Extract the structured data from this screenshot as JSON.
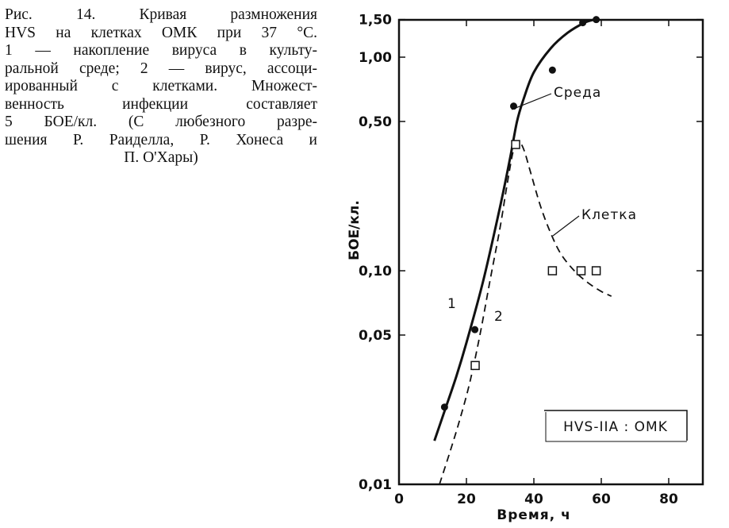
{
  "caption": {
    "lines": [
      "Рис.   14. Кривая размножения",
      "HVS на клетках ОМК при 37 °С.",
      "1 — накопление вируса в культу-",
      "ральной среде; 2 — вирус, ассоци-",
      "ированный с клетками. Множест-",
      "венность  инфекции  составляет",
      "5 БОЕ/кл. (С любезного разре-",
      "шения Р. Раиделла, Р. Хонеса и",
      "П. О'Хары)"
    ]
  },
  "chart_data": {
    "type": "line",
    "title": "",
    "xlabel": "Время, ч",
    "ylabel": "БОЕ/кл.",
    "xlim": [
      0,
      90
    ],
    "ylim": [
      0.01,
      1.5
    ],
    "yscale": "log",
    "x_ticks": [
      0,
      20,
      40,
      60,
      80
    ],
    "x_tick_labels": [
      "0",
      "20",
      "40",
      "60",
      "80"
    ],
    "y_ticks": [
      0.01,
      0.05,
      0.1,
      0.5,
      1.0,
      1.5
    ],
    "y_tick_labels": [
      "0,01",
      "0,05",
      "0,10",
      "0,50",
      "1,00",
      "1,50"
    ],
    "series": [
      {
        "name": "Среда",
        "number_label": "1",
        "style": "solid",
        "marker": "filled-circle",
        "points": [
          [
            13.5,
            0.023
          ],
          [
            22.5,
            0.053
          ],
          [
            34,
            0.59
          ],
          [
            45.5,
            0.87
          ],
          [
            54.5,
            1.45
          ],
          [
            58.5,
            1.5
          ]
        ],
        "curve": [
          [
            10.5,
            0.016
          ],
          [
            13.5,
            0.022
          ],
          [
            17,
            0.032
          ],
          [
            20,
            0.046
          ],
          [
            25,
            0.09
          ],
          [
            30,
            0.2
          ],
          [
            33,
            0.34
          ],
          [
            35,
            0.5
          ],
          [
            37,
            0.64
          ],
          [
            40,
            0.85
          ],
          [
            45,
            1.1
          ],
          [
            50,
            1.3
          ],
          [
            55,
            1.45
          ],
          [
            58,
            1.5
          ]
        ]
      },
      {
        "name": "Клетка",
        "number_label": "2",
        "style": "dashed",
        "marker": "open-square",
        "points": [
          [
            22.6,
            0.036
          ],
          [
            34.6,
            0.39
          ],
          [
            45.5,
            0.1
          ],
          [
            54,
            0.1
          ],
          [
            58.5,
            0.1
          ]
        ],
        "curve": [
          [
            12,
            0.01
          ],
          [
            15,
            0.014
          ],
          [
            18,
            0.02
          ],
          [
            21,
            0.03
          ],
          [
            24,
            0.05
          ],
          [
            27,
            0.09
          ],
          [
            30,
            0.16
          ],
          [
            32,
            0.25
          ],
          [
            34,
            0.37
          ],
          [
            35.5,
            0.4
          ],
          [
            37,
            0.37
          ],
          [
            39,
            0.29
          ],
          [
            42,
            0.2
          ],
          [
            45,
            0.15
          ],
          [
            48,
            0.12
          ],
          [
            52,
            0.1
          ],
          [
            56,
            0.088
          ],
          [
            60,
            0.08
          ],
          [
            63,
            0.076
          ]
        ]
      }
    ],
    "annotations": [
      "Среда",
      "Клетка",
      "1",
      "2"
    ],
    "legend_box": "HVS-IIA : OMK",
    "grid": false
  }
}
